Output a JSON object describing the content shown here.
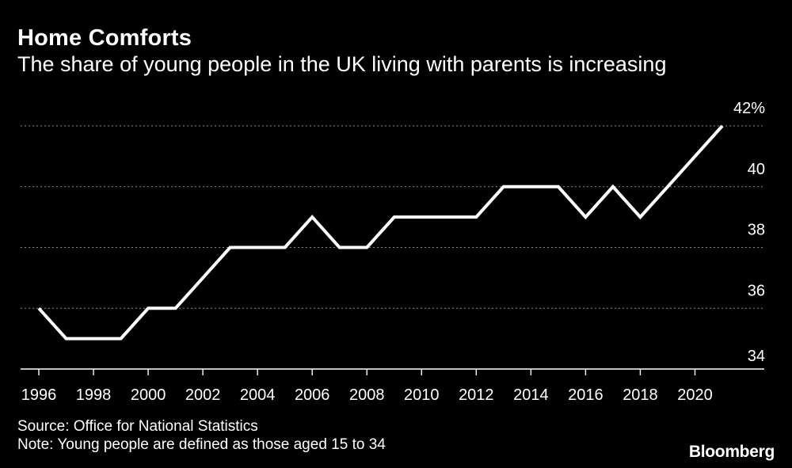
{
  "header": {
    "title": "Home Comforts",
    "subtitle": "The share of young people in the UK living with parents is increasing"
  },
  "footer": {
    "source": "Source: Office for National Statistics",
    "note": "Note: Young people are defined as those aged 15 to 34",
    "brand": "Bloomberg"
  },
  "colors": {
    "background": "#000000",
    "line": "#ffffff",
    "grid": "#8a8a8a",
    "text": "#ffffff"
  },
  "chart_data": {
    "type": "line",
    "title": "Home Comforts",
    "subtitle": "The share of young people in the UK living with parents is increasing",
    "xlabel": "",
    "ylabel": "",
    "x": [
      1996,
      1997,
      1998,
      1999,
      2000,
      2001,
      2002,
      2003,
      2004,
      2005,
      2006,
      2007,
      2008,
      2009,
      2010,
      2011,
      2012,
      2013,
      2014,
      2015,
      2016,
      2017,
      2018,
      2019,
      2020,
      2021
    ],
    "series": [
      {
        "values": [
          36,
          35,
          35,
          35,
          36,
          36,
          37,
          38,
          38,
          38,
          39,
          38,
          38,
          39,
          39,
          39,
          39,
          40,
          40,
          40,
          39,
          40,
          39,
          40,
          41,
          42
        ]
      }
    ],
    "xlim": [
      1996,
      2021
    ],
    "ylim": [
      34,
      42
    ],
    "x_ticks": [
      1996,
      1998,
      2000,
      2002,
      2004,
      2006,
      2008,
      2010,
      2012,
      2014,
      2016,
      2018,
      2020
    ],
    "y_ticks": [
      34,
      36,
      38,
      40,
      42
    ],
    "y_tick_labels": [
      "34",
      "36",
      "38",
      "40",
      "42%"
    ],
    "grid": true,
    "grid_axis": "y",
    "y_axis_side": "right"
  }
}
